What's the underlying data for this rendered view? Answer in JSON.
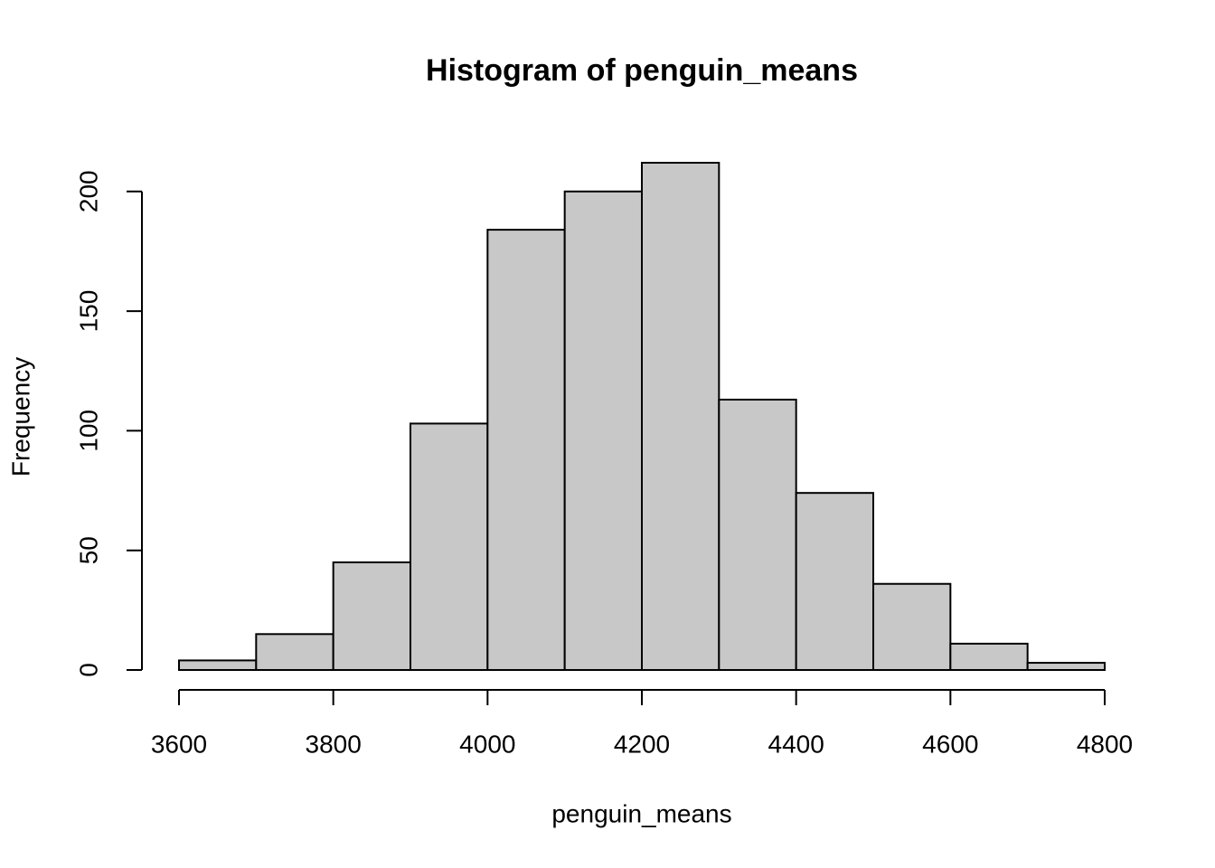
{
  "chart_data": {
    "type": "histogram",
    "title": "Histogram of penguin_means",
    "x_label": "penguin_means",
    "y_label": "Frequency",
    "bins": [
      3600,
      3700,
      3800,
      3900,
      4000,
      4100,
      4200,
      4300,
      4400,
      4500,
      4600,
      4700,
      4800
    ],
    "values": [
      4,
      15,
      45,
      103,
      184,
      200,
      212,
      113,
      74,
      36,
      11,
      3
    ],
    "color": "#c8c8c8",
    "xlim": [
      3600,
      4800
    ],
    "xticks": [
      3600,
      3800,
      4000,
      4200,
      4400,
      4600,
      4800
    ],
    "ylim": [
      0,
      212
    ],
    "yticks": [
      0,
      50,
      100,
      150,
      200
    ]
  }
}
